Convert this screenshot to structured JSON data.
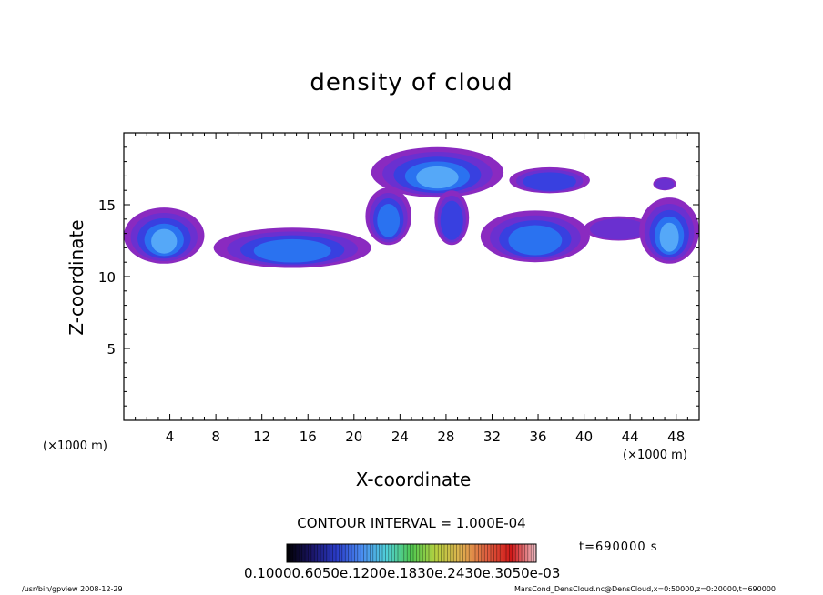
{
  "chart_data": {
    "type": "heatmap",
    "title": "density of cloud",
    "xlabel": "X-coordinate",
    "ylabel": "Z-coordinate",
    "x_unit": "(×1000 m)",
    "y_unit": "(×1000 m)",
    "xlim": [
      0,
      50
    ],
    "ylim": [
      0,
      20
    ],
    "x_ticks": [
      "4",
      "8",
      "12",
      "16",
      "20",
      "24",
      "28",
      "32",
      "36",
      "40",
      "44",
      "48"
    ],
    "x_tick_values": [
      4,
      8,
      12,
      16,
      20,
      24,
      28,
      32,
      36,
      40,
      44,
      48
    ],
    "y_ticks": [
      "5",
      "10",
      "15"
    ],
    "y_tick_values": [
      5,
      10,
      15
    ],
    "contour_interval_text": "CONTOUR INTERVAL = 1.000E-04",
    "time_text": "t=690000 s",
    "colorbar_text": "0.10000.6050e.1200e.1830e.2430e.3050e-03",
    "colorbar_stops": [
      "#000000",
      "#1a1466",
      "#2a3cc8",
      "#4a8cf0",
      "#50d0d8",
      "#50c850",
      "#b8d040",
      "#e0b050",
      "#e06040",
      "#d01818",
      "#f0c0c8"
    ],
    "footer_left": "/usr/bin/gpview   2008-12-29",
    "footer_right": "MarsCond_DensCloud.nc@DensCloud,x=0:50000,z=0:20000,t=690000",
    "color_levels": [
      "#8a2ac0",
      "#6a30d0",
      "#3840e0",
      "#2a72f0",
      "#55a8f8"
    ],
    "regions": [
      {
        "x0": 0.0,
        "x1": 7.0,
        "z0": 10.9,
        "z1": 14.8,
        "peak": 1.0
      },
      {
        "x0": 7.8,
        "x1": 21.5,
        "z0": 10.6,
        "z1": 13.4,
        "peak": 0.85
      },
      {
        "x0": 21.5,
        "x1": 33.0,
        "z0": 15.5,
        "z1": 19.0,
        "peak": 0.95
      },
      {
        "x0": 21.0,
        "x1": 25.0,
        "z0": 12.2,
        "z1": 16.2,
        "peak": 0.8
      },
      {
        "x0": 27.0,
        "x1": 30.0,
        "z0": 12.2,
        "z1": 16.0,
        "peak": 0.55
      },
      {
        "x0": 33.5,
        "x1": 40.5,
        "z0": 15.8,
        "z1": 17.6,
        "peak": 0.5
      },
      {
        "x0": 31.0,
        "x1": 40.5,
        "z0": 11.0,
        "z1": 14.6,
        "peak": 0.8
      },
      {
        "x0": 40.0,
        "x1": 46.0,
        "z0": 12.5,
        "z1": 14.2,
        "peak": 0.45
      },
      {
        "x0": 44.8,
        "x1": 50.0,
        "z0": 10.9,
        "z1": 15.5,
        "peak": 1.0
      },
      {
        "x0": 46.0,
        "x1": 48.0,
        "z0": 16.0,
        "z1": 16.9,
        "peak": 0.3
      }
    ]
  }
}
